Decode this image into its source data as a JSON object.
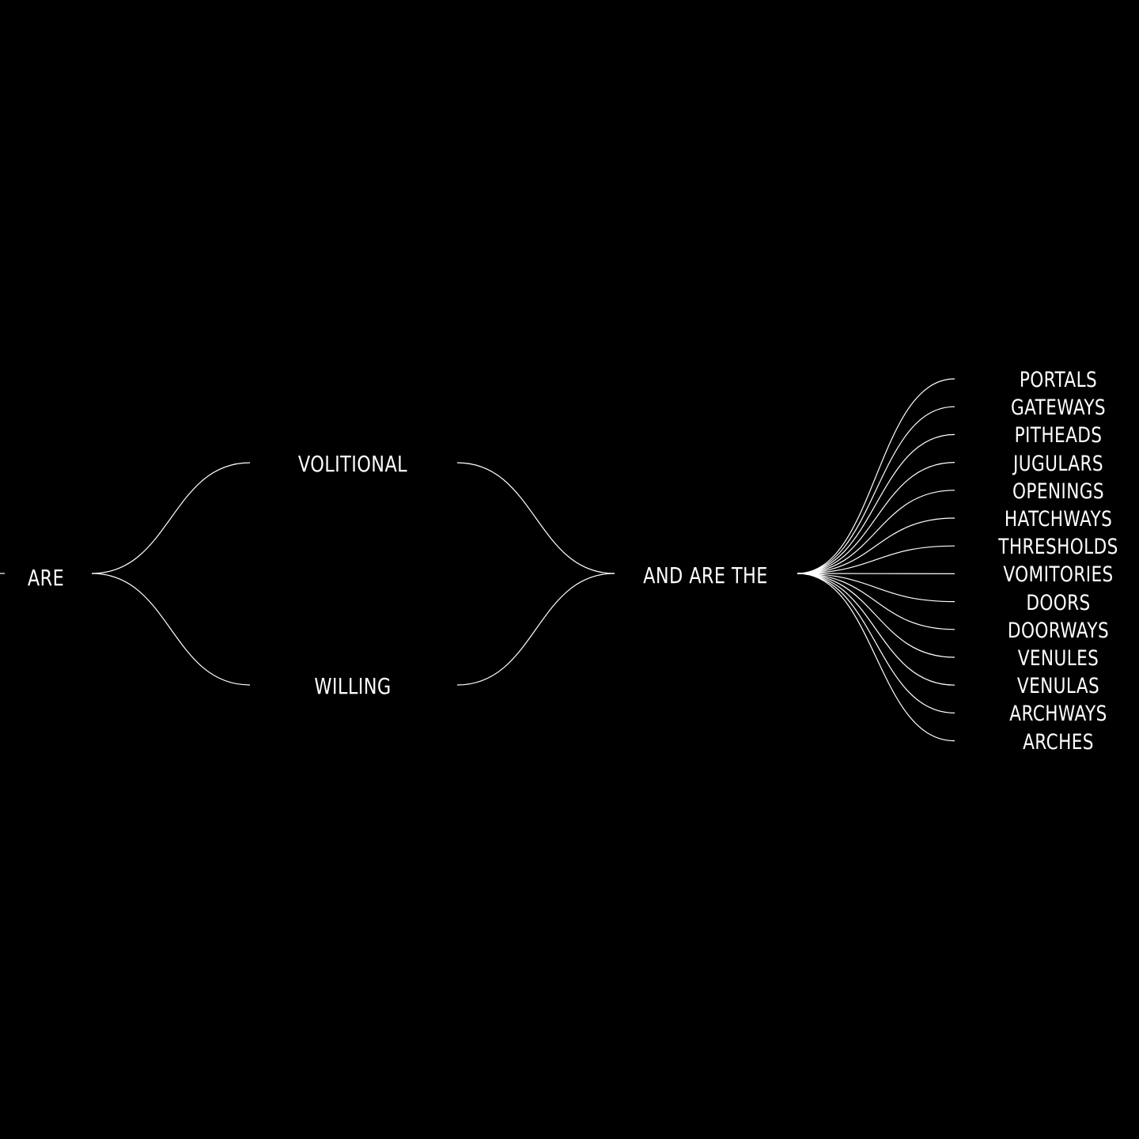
{
  "diagram": {
    "start_word": "ARE",
    "branch_upper": "VOLITIONAL",
    "branch_lower": "WILLING",
    "join_word": "AND ARE THE",
    "fan_words": [
      "PORTALS",
      "GATEWAYS",
      "PITHEADS",
      "JUGULARS",
      "OPENINGS",
      "HATCHWAYS",
      "THRESHOLDS",
      "VOMITORIES",
      "DOORS",
      "DOORWAYS",
      "VENULES",
      "VENULAS",
      "ARCHWAYS",
      "ARCHES"
    ]
  },
  "colors": {
    "background": "#000000",
    "ink": "#ffffff"
  }
}
